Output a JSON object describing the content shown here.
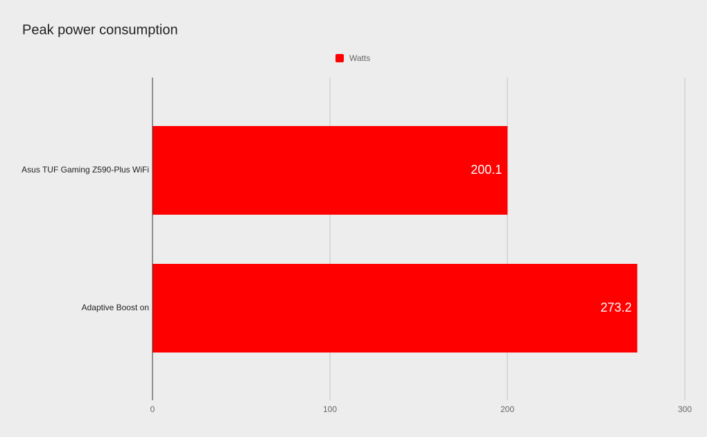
{
  "chart_data": {
    "type": "bar",
    "orientation": "horizontal",
    "title": "Peak power consumption",
    "categories": [
      "Asus TUF Gaming Z590-Plus WiFi",
      "Adaptive Boost on"
    ],
    "series": [
      {
        "name": "Watts",
        "color": "#ff0000",
        "values": [
          200.1,
          273.2
        ]
      }
    ],
    "xlim": [
      0,
      300
    ],
    "xticks": [
      0,
      100,
      200,
      300
    ],
    "grid": true,
    "legend": "top",
    "data_labels": true
  }
}
